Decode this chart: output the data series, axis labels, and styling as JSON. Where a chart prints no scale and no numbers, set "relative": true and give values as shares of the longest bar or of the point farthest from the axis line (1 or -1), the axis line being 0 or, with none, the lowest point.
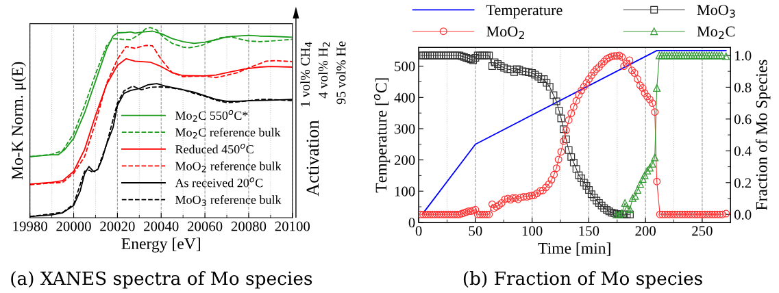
{
  "chart_data": [
    {
      "type": "line",
      "title": "(a) XANES spectra of Mo species",
      "xlabel": "Energy [eV]",
      "ylabel": "Mo-K Norm. μ(E)",
      "relative": true,
      "tick_labels": "x",
      "grid": "x",
      "legend": "bottom right",
      "xlim": [
        19980,
        20100
      ],
      "xticks": [
        19980,
        {
          "value": 19990,
          "label": null
        },
        20000,
        {
          "value": 20010,
          "label": null
        },
        20020,
        {
          "value": 20030,
          "label": null
        },
        20040,
        {
          "value": 20050,
          "label": null
        },
        20060,
        {
          "value": 20070,
          "label": null
        },
        20080,
        {
          "value": 20090,
          "label": null
        },
        20100
      ],
      "annotations": [
        "Activation",
        "1 vol% CH$_{4}$",
        "4 vol% H$_{2}$",
        "95 vol% He"
      ],
      "series": [
        {
          "name": "Mo$_{2}$C 550$^{o}$C*",
          "color": "#1a9a1a",
          "line_style": "solid",
          "x": [
            19980,
            19990,
            19993,
            19996,
            20000,
            20005,
            20010,
            20015,
            20018,
            20020,
            20024,
            20026,
            20028,
            20032,
            20036,
            20040,
            20045,
            20050,
            20055,
            20060,
            20065,
            20070,
            20075,
            20080,
            20085,
            20090,
            20100
          ],
          "values": [
            0.321,
            0.331,
            0.331,
            0.359,
            0.417,
            0.551,
            0.718,
            0.885,
            0.955,
            0.972,
            0.974,
            0.977,
            0.971,
            0.977,
            0.981,
            0.968,
            0.942,
            0.926,
            0.917,
            0.923,
            0.936,
            0.951,
            0.955,
            0.959,
            0.955,
            0.954,
            0.949
          ]
        },
        {
          "name": "Mo$_{2}$C reference bulk",
          "color": "#1a9a1a",
          "line_style": "dashed",
          "x": [
            19980,
            19990,
            19995,
            20000,
            20005,
            20010,
            20015,
            20018,
            20022,
            20026,
            20030,
            20033,
            20035,
            20038,
            20041,
            20045,
            20050,
            20053,
            20058,
            20062,
            20067,
            20072,
            20075,
            20080,
            20085,
            20090,
            20100
          ],
          "values": [
            0.321,
            0.333,
            0.353,
            0.442,
            0.59,
            0.756,
            0.904,
            0.942,
            0.938,
            0.936,
            0.964,
            0.994,
            1.0,
            0.987,
            0.949,
            0.917,
            0.897,
            0.894,
            0.904,
            0.923,
            0.946,
            0.951,
            0.942,
            0.929,
            0.926,
            0.929,
            0.938
          ]
        },
        {
          "name": "Reduced 450$^{o}$C",
          "color": "#ff0000",
          "line_style": "solid",
          "x": [
            19980,
            19990,
            19995,
            20000,
            20005,
            20010,
            20015,
            20020,
            20024,
            20028,
            20035,
            20040,
            20045,
            20050,
            20060,
            20065,
            20070,
            20078,
            20085,
            20090,
            20100
          ],
          "values": [
            0.177,
            0.186,
            0.195,
            0.244,
            0.359,
            0.538,
            0.699,
            0.801,
            0.836,
            0.823,
            0.818,
            0.795,
            0.763,
            0.747,
            0.746,
            0.75,
            0.763,
            0.782,
            0.792,
            0.795,
            0.792
          ]
        },
        {
          "name": "MoO$_{2}$ reference bulk",
          "color": "#ff0000",
          "line_style": "dashed",
          "x": [
            19980,
            19990,
            19995,
            20000,
            20005,
            20010,
            20015,
            20020,
            20024,
            20028,
            20033,
            20036,
            20040,
            20045,
            20050,
            20055,
            20060,
            20065,
            20068,
            20075,
            20080,
            20088,
            20092,
            20100
          ],
          "values": [
            0.173,
            0.182,
            0.186,
            0.233,
            0.321,
            0.5,
            0.705,
            0.833,
            0.9,
            0.891,
            0.906,
            0.904,
            0.833,
            0.763,
            0.741,
            0.744,
            0.744,
            0.737,
            0.744,
            0.763,
            0.788,
            0.823,
            0.826,
            0.821
          ]
        },
        {
          "name": "As received 20$^{o}$C",
          "color": "#000000",
          "line_style": "solid",
          "x": [
            19980,
            19990,
            19995,
            20000,
            20003,
            20005,
            20007,
            20009,
            20011,
            20013,
            20015,
            20018,
            20020,
            20023,
            20026,
            20030,
            20034,
            20038,
            20042,
            20046,
            20050,
            20055,
            20060,
            20065,
            20070,
            20075,
            20080,
            20090,
            20100
          ],
          "values": [
            0.006,
            0.015,
            0.026,
            0.064,
            0.141,
            0.231,
            0.269,
            0.244,
            0.253,
            0.308,
            0.385,
            0.474,
            0.59,
            0.654,
            0.669,
            0.679,
            0.699,
            0.705,
            0.692,
            0.683,
            0.673,
            0.66,
            0.641,
            0.622,
            0.612,
            0.612,
            0.615,
            0.618,
            0.622
          ]
        },
        {
          "name": "MoO$_{3}$ reference bulk",
          "color": "#000000",
          "line_style": "dashed",
          "x": [
            19980,
            19995,
            20000,
            20005,
            20007,
            20009,
            20011,
            20015,
            20020,
            20023,
            20027,
            20031,
            20035,
            20040,
            20045,
            20050,
            20055,
            20060,
            20065,
            20070,
            20075,
            20080,
            20085,
            20090,
            20100
          ],
          "values": [
            0.006,
            0.028,
            0.071,
            0.244,
            0.25,
            0.237,
            0.256,
            0.385,
            0.603,
            0.667,
            0.692,
            0.673,
            0.686,
            0.688,
            0.682,
            0.673,
            0.654,
            0.638,
            0.618,
            0.605,
            0.609,
            0.615,
            0.622,
            0.622,
            0.615
          ]
        }
      ]
    },
    {
      "type": "line",
      "title": "(b) Fraction of Mo species",
      "xlabel": "Time [min]",
      "ylabel": "Temperature [$^{o}$C]",
      "y2label": "Fraction of Mo Species",
      "grid": "x",
      "legend": "top",
      "xlim": [
        0,
        275
      ],
      "xticks": [
        0,
        {
          "value": 25,
          "label": null
        },
        50,
        {
          "value": 75,
          "label": null
        },
        100,
        {
          "value": 125,
          "label": null
        },
        150,
        {
          "value": 175,
          "label": null
        },
        200,
        {
          "value": 225,
          "label": null
        },
        250
      ],
      "ylim": [
        0,
        560
      ],
      "yticks": [
        0,
        {
          "value": 50,
          "label": null
        },
        100,
        {
          "value": 150,
          "label": null
        },
        200,
        {
          "value": 250,
          "label": null
        },
        300,
        {
          "value": 350,
          "label": null
        },
        400,
        {
          "value": 450,
          "label": null
        },
        500
      ],
      "y2lim": [
        -0.05,
        1.05
      ],
      "y2ticks": [
        {
          "value": 0,
          "label": "0.0"
        },
        {
          "value": 0.1,
          "label": null
        },
        0.2,
        {
          "value": 0.3,
          "label": null
        },
        0.4,
        {
          "value": 0.5,
          "label": null
        },
        0.6,
        {
          "value": 0.7,
          "label": null
        },
        0.8,
        {
          "value": 0.9,
          "label": null
        },
        {
          "value": 1,
          "label": "1.0"
        }
      ],
      "series": [
        {
          "name": "Temperature",
          "type": "line",
          "color": "#0000ff",
          "marker": "none",
          "x": [
            4,
            50,
            210,
            271
          ],
          "values": [
            30,
            250,
            550,
            550
          ]
        },
        {
          "name": "MoO$_{3}$",
          "type": "line",
          "axis": "y2",
          "color": "#333333",
          "marker": "square",
          "x": [
            2,
            4,
            6,
            8,
            10,
            12,
            14,
            16,
            18,
            20,
            22,
            24,
            26,
            28,
            30,
            32,
            34,
            36,
            38,
            40,
            42,
            44,
            46,
            48,
            50,
            52,
            54,
            56,
            58,
            60,
            62,
            64.8,
            67,
            69.7,
            72.4,
            75.3,
            78.2,
            80.9,
            84.2,
            86.5,
            88.7,
            91.6,
            94.3,
            97,
            99.9,
            102.5,
            105.5,
            108.1,
            110.4,
            112.8,
            115.5,
            118.9,
            121.5,
            123.8,
            125.6,
            127.8,
            130,
            132.3,
            134.5,
            136.7,
            139,
            141.2,
            143.4,
            145.7,
            147.9,
            150.1,
            152.4,
            154.6,
            156.8,
            159,
            161.3,
            163.5,
            165.8,
            168,
            170.2,
            172.5,
            174.7,
            176.9,
            179.2,
            181.4,
            183.6,
            186.3
          ],
          "values": [
            1.0,
            1.0,
            1.0,
            1.0,
            1.0,
            1.0,
            1.0,
            1.0,
            1.0,
            1.0,
            1.0,
            1.0,
            1.0,
            1.0,
            1.0,
            1.0,
            1.0,
            1.0,
            0.995,
            0.99,
            0.985,
            0.98,
            0.975,
            0.97,
            0.985,
            1.0,
            1.0,
            1.0,
            1.0,
            1.0,
            1.0,
            0.933,
            0.957,
            0.946,
            0.933,
            0.922,
            0.914,
            0.911,
            0.895,
            0.914,
            0.911,
            0.901,
            0.898,
            0.894,
            0.89,
            0.879,
            0.866,
            0.851,
            0.851,
            0.827,
            0.803,
            0.75,
            0.711,
            0.652,
            0.604,
            0.536,
            0.472,
            0.405,
            0.361,
            0.326,
            0.286,
            0.246,
            0.227,
            0.2,
            0.18,
            0.154,
            0.127,
            0.107,
            0.087,
            0.072,
            0.056,
            0.04,
            0.029,
            0.019,
            0.011,
            0.008,
            0.003,
            0.0,
            0.0,
            0.0,
            0.0,
            0.0
          ]
        },
        {
          "name": "MoO$_{2}$",
          "type": "line",
          "axis": "y2",
          "color": "#ff3333",
          "marker": "circle",
          "x": [
            2,
            4,
            6,
            8,
            10,
            12,
            14,
            16,
            18,
            20,
            22,
            24,
            26,
            28,
            30,
            32,
            34,
            36,
            38,
            40,
            42,
            44,
            46,
            48,
            50,
            52,
            54,
            56,
            58,
            60,
            62,
            64.8,
            66.4,
            68.6,
            70.8,
            73.1,
            76,
            78.6,
            80.9,
            83.1,
            85.3,
            87.6,
            89.8,
            92.5,
            95.4,
            97.6,
            99.9,
            102.1,
            104.3,
            107.2,
            109.5,
            112.2,
            114.8,
            117.1,
            119.3,
            121.5,
            123.3,
            125.6,
            127.8,
            130,
            132.3,
            134.5,
            136.7,
            139,
            141.2,
            143.4,
            145.7,
            147.9,
            150.1,
            152.4,
            154.6,
            156.8,
            159,
            161.3,
            163.5,
            165.8,
            168,
            170.2,
            172.5,
            174.7,
            176.9,
            179.2,
            181,
            183.2,
            185.9,
            188.1,
            190.3,
            193,
            195.3,
            197.5,
            199.3,
            201.5,
            203.8,
            206,
            208.2,
            210,
            212.7,
            214.9,
            217.1,
            219.3,
            221.5,
            223.7,
            225.9,
            228.1,
            230.3,
            232.5,
            234.7,
            236.9,
            239.1,
            241.3,
            243.5,
            245.7,
            247.9,
            250.1,
            252.3,
            254.5,
            256.7,
            258.9,
            261.1,
            263.3,
            265.5,
            267.7,
            271
          ],
          "values": [
            0,
            0,
            0,
            0,
            0,
            0,
            0,
            0,
            0,
            0,
            0,
            0,
            0,
            0,
            0,
            0,
            0,
            0,
            0.005,
            0.01,
            0.015,
            0.02,
            0.02,
            0.025,
            0.03,
            0,
            0,
            0,
            0,
            0,
            0,
            0.064,
            0.04,
            0.048,
            0.059,
            0.072,
            0.095,
            0.1,
            0.092,
            0.103,
            0.103,
            0.095,
            0.107,
            0.111,
            0.111,
            0.116,
            0.119,
            0.122,
            0.132,
            0.148,
            0.151,
            0.17,
            0.191,
            0.218,
            0.25,
            0.291,
            0.345,
            0.394,
            0.461,
            0.529,
            0.593,
            0.636,
            0.676,
            0.715,
            0.752,
            0.779,
            0.803,
            0.827,
            0.851,
            0.874,
            0.895,
            0.914,
            0.927,
            0.946,
            0.962,
            0.978,
            0.986,
            0.994,
            0.997,
            0.997,
            1.0,
            0.99,
            0.933,
            0.949,
            0.97,
            0.906,
            0.89,
            0.851,
            0.811,
            0.795,
            0.763,
            0.742,
            0.723,
            0.7,
            0.644,
            0.207,
            0,
            0,
            0,
            0,
            0,
            0,
            0,
            0,
            0,
            0,
            0,
            0,
            0,
            0,
            0,
            0,
            0,
            0,
            0,
            0,
            0,
            0,
            0,
            0,
            0,
            0,
            0.005
          ]
        },
        {
          "name": "Mo$_{2}$C",
          "type": "line",
          "axis": "y2",
          "color": "#339933",
          "marker": "triangle",
          "x": [
            174.3,
            176.9,
            179.2,
            181.9,
            184.1,
            186.3,
            188.6,
            190.8,
            193,
            195.3,
            197.5,
            199.3,
            201.5,
            203.8,
            206,
            208.2,
            210,
            212.2,
            214.4,
            216.6,
            218.8,
            221,
            223.2,
            225.4,
            227.6,
            229.8,
            232,
            234.2,
            236.4,
            238.6,
            240.8,
            243,
            245.2,
            247.4,
            249.6,
            251.8,
            254,
            256.2,
            258.4,
            260.6,
            262.8,
            265,
            267.2,
            271
          ],
          "values": [
            0,
            0,
            0.008,
            0.072,
            0.04,
            0.032,
            0.103,
            0.116,
            0.154,
            0.191,
            0.223,
            0.246,
            0.275,
            0.294,
            0.318,
            0.358,
            0.795,
            1.0,
            1.0,
            1.0,
            1.0,
            1.0,
            1.0,
            1.0,
            1.0,
            1.0,
            1.0,
            1.0,
            1.0,
            1.0,
            1.0,
            1.0,
            1.0,
            1.0,
            1.0,
            1.0,
            1.0,
            1.0,
            1.0,
            1.0,
            1.0,
            1.0,
            1.0,
            0.995
          ]
        }
      ]
    }
  ]
}
